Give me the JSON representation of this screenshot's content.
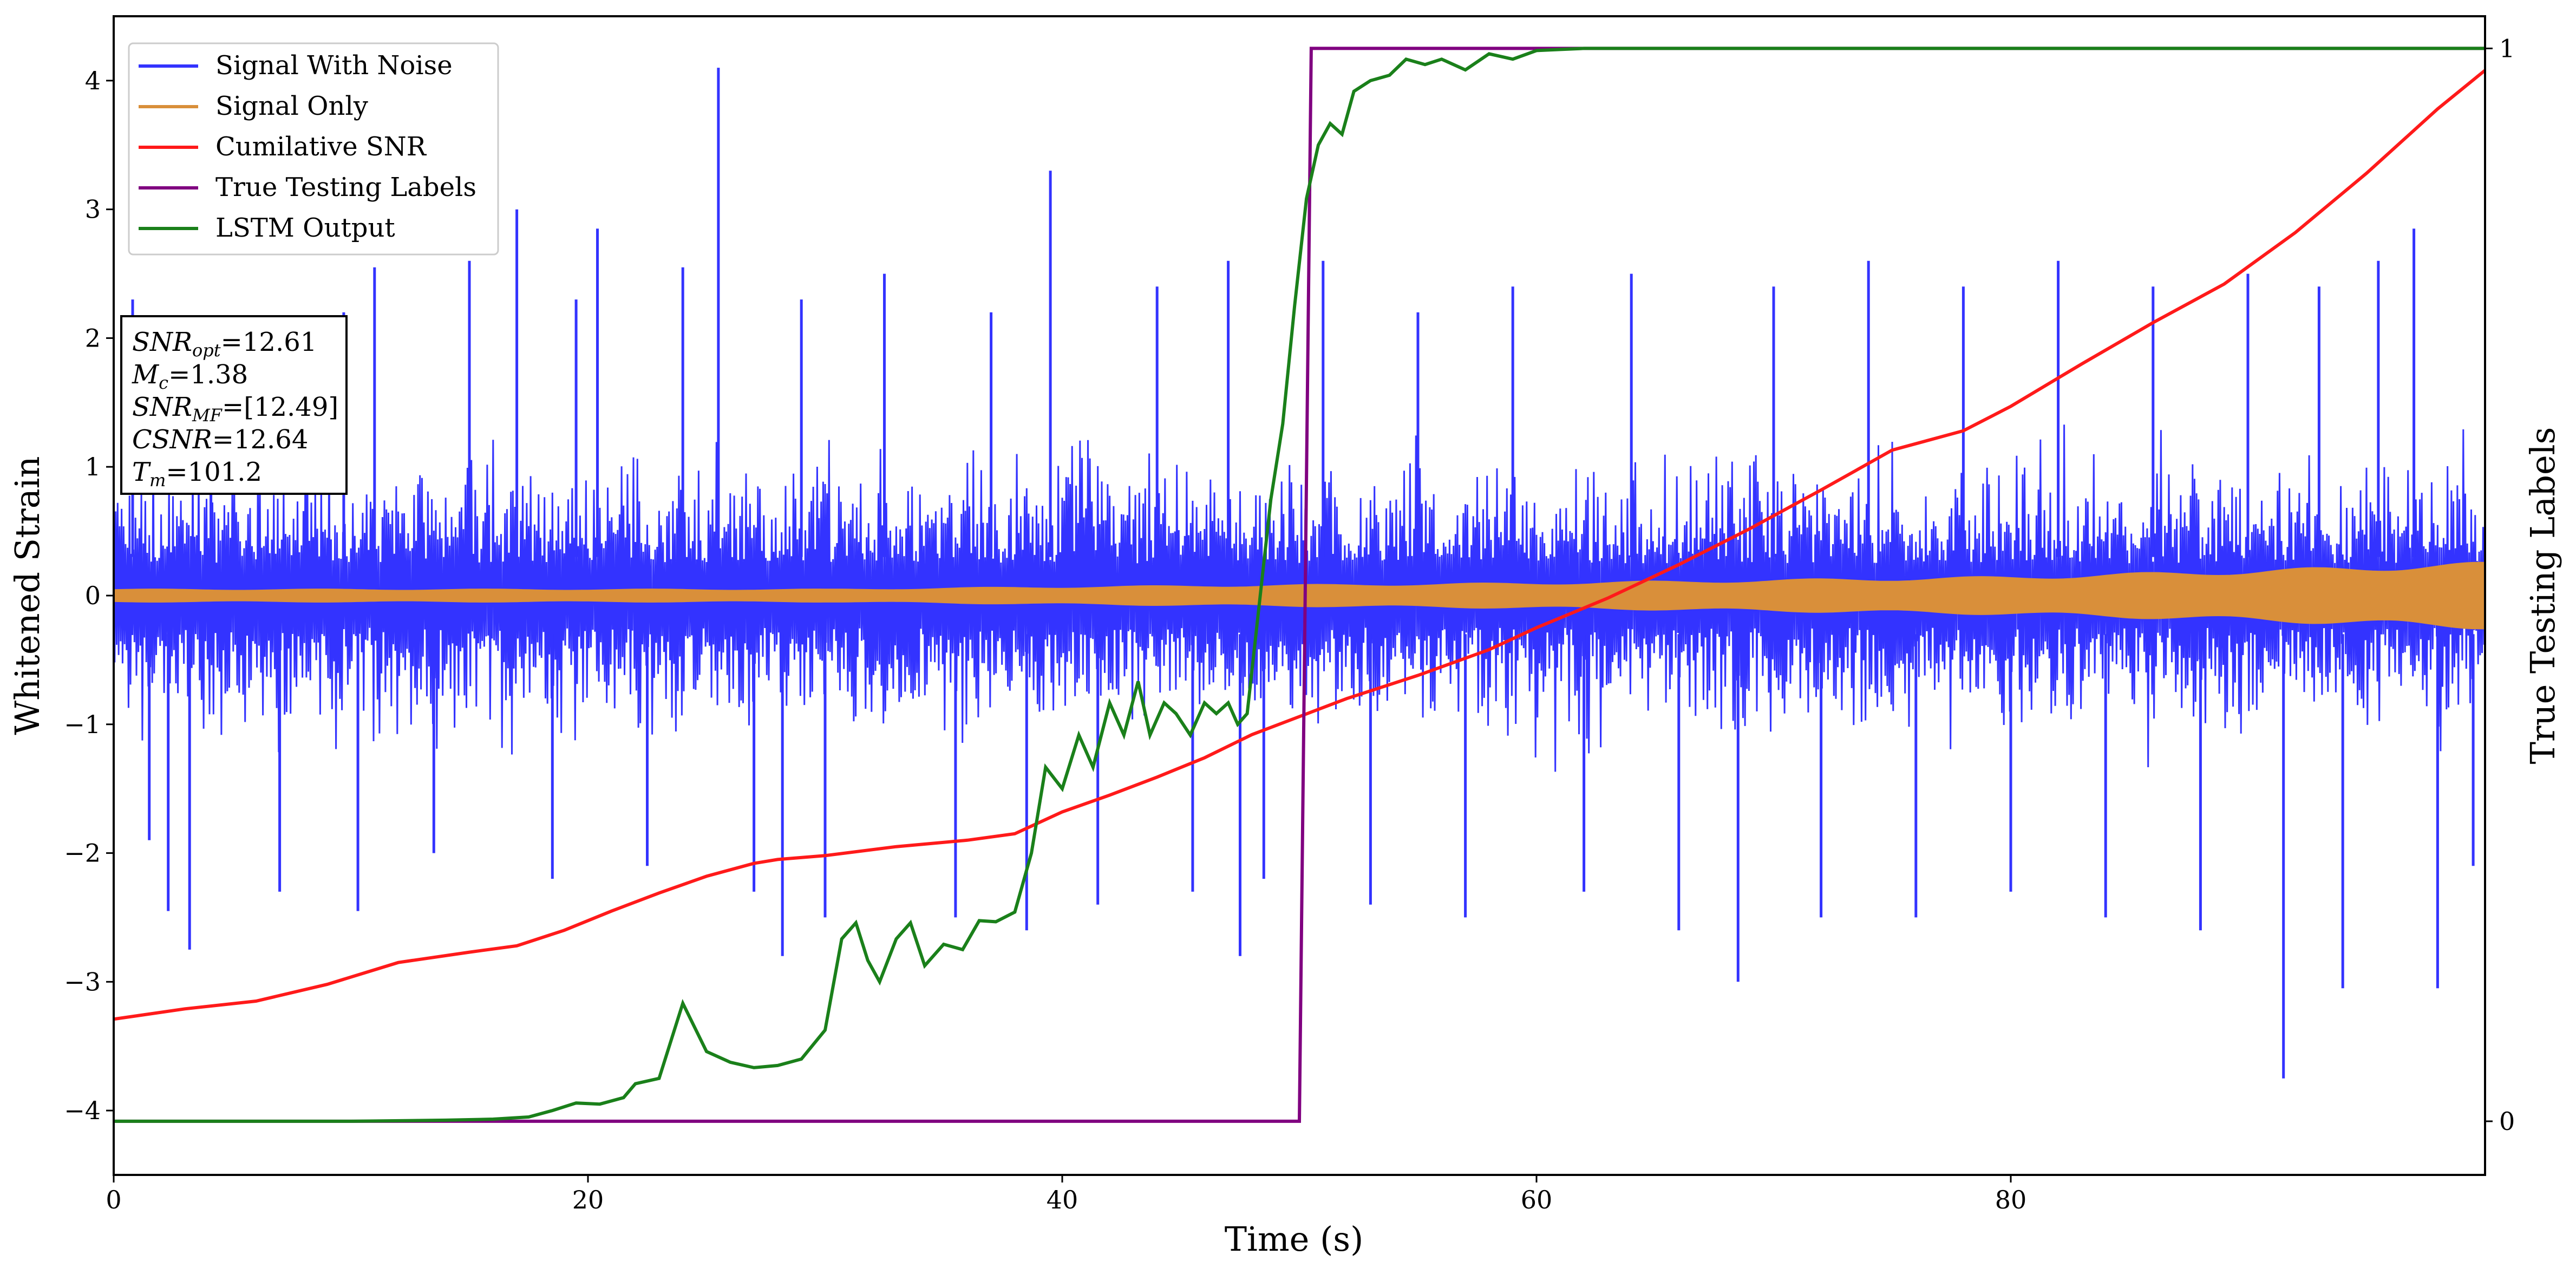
{
  "chart_data": {
    "type": "line",
    "xlabel": "Time (s)",
    "ylabel": "Whitened Strain",
    "ylabel_right": "True Testing Labels",
    "xlim": [
      0,
      100
    ],
    "ylim": [
      -4.5,
      4.5
    ],
    "ylim_right": [
      -0.05,
      1.03
    ],
    "x_ticks": [
      0,
      20,
      40,
      60,
      80
    ],
    "y_ticks": [
      -4,
      -3,
      -2,
      -1,
      0,
      1,
      2,
      3,
      4
    ],
    "y_ticks_right": [
      0,
      1
    ],
    "grid": false,
    "legend_position": "top-left",
    "colors": {
      "signal_with_noise": "#3333ff",
      "signal_only": "#d98f3a",
      "cumulative_snr": "#ff1a1a",
      "true_labels": "#800080",
      "lstm_output": "#1a801a"
    },
    "series": [
      {
        "name": "Signal With Noise",
        "axis": "left",
        "description": "noise band, approx -1.6..+1.6 with spikes",
        "envelope_upper_typical": 1.5,
        "envelope_lower_typical": -1.6,
        "spikes": [
          {
            "x": 0.8,
            "y": 2.3
          },
          {
            "x": 1.5,
            "y": -1.9
          },
          {
            "x": 2.3,
            "y": -2.45
          },
          {
            "x": 3.2,
            "y": -2.75
          },
          {
            "x": 4.1,
            "y": 2.05
          },
          {
            "x": 7.0,
            "y": -2.3
          },
          {
            "x": 9.7,
            "y": 2.2
          },
          {
            "x": 10.3,
            "y": -2.45
          },
          {
            "x": 11.0,
            "y": 2.55
          },
          {
            "x": 13.5,
            "y": -2.0
          },
          {
            "x": 15.0,
            "y": 2.6
          },
          {
            "x": 17.0,
            "y": 3.0
          },
          {
            "x": 18.5,
            "y": -2.2
          },
          {
            "x": 19.5,
            "y": 2.3
          },
          {
            "x": 20.4,
            "y": 2.85
          },
          {
            "x": 22.5,
            "y": -2.1
          },
          {
            "x": 24.0,
            "y": 2.55
          },
          {
            "x": 25.5,
            "y": 4.1
          },
          {
            "x": 27.0,
            "y": -2.3
          },
          {
            "x": 28.2,
            "y": -2.8
          },
          {
            "x": 29.0,
            "y": 2.3
          },
          {
            "x": 30.0,
            "y": -2.5
          },
          {
            "x": 32.5,
            "y": 2.5
          },
          {
            "x": 35.5,
            "y": -2.5
          },
          {
            "x": 37.0,
            "y": 2.2
          },
          {
            "x": 38.5,
            "y": -2.6
          },
          {
            "x": 39.5,
            "y": 3.3
          },
          {
            "x": 41.5,
            "y": -2.4
          },
          {
            "x": 44.0,
            "y": 2.4
          },
          {
            "x": 45.5,
            "y": -2.3
          },
          {
            "x": 47.0,
            "y": 2.6
          },
          {
            "x": 47.5,
            "y": -2.8
          },
          {
            "x": 48.5,
            "y": -2.2
          },
          {
            "x": 51.0,
            "y": 2.6
          },
          {
            "x": 53.0,
            "y": -2.4
          },
          {
            "x": 55.0,
            "y": 2.2
          },
          {
            "x": 57.0,
            "y": -2.5
          },
          {
            "x": 59.0,
            "y": 2.4
          },
          {
            "x": 62.0,
            "y": -2.3
          },
          {
            "x": 64.0,
            "y": 2.5
          },
          {
            "x": 66.0,
            "y": -2.6
          },
          {
            "x": 68.5,
            "y": -3.0
          },
          {
            "x": 70.0,
            "y": 2.4
          },
          {
            "x": 72.0,
            "y": -2.5
          },
          {
            "x": 74.0,
            "y": 2.6
          },
          {
            "x": 76.0,
            "y": -2.5
          },
          {
            "x": 78.0,
            "y": 2.4
          },
          {
            "x": 80.0,
            "y": -2.3
          },
          {
            "x": 82.0,
            "y": 2.6
          },
          {
            "x": 84.0,
            "y": -2.5
          },
          {
            "x": 86.0,
            "y": 2.4
          },
          {
            "x": 88.0,
            "y": -2.6
          },
          {
            "x": 90.0,
            "y": 2.5
          },
          {
            "x": 91.5,
            "y": -3.75
          },
          {
            "x": 93.0,
            "y": 2.4
          },
          {
            "x": 94.0,
            "y": -3.05
          },
          {
            "x": 95.5,
            "y": 2.6
          },
          {
            "x": 97.0,
            "y": 2.85
          },
          {
            "x": 98.0,
            "y": -3.05
          },
          {
            "x": 99.5,
            "y": -2.1
          }
        ]
      },
      {
        "name": "Signal Only",
        "axis": "left",
        "amplitude_by_x": [
          {
            "x": 0,
            "a": 0.05
          },
          {
            "x": 30,
            "a": 0.05
          },
          {
            "x": 40,
            "a": 0.07
          },
          {
            "x": 60,
            "a": 0.1
          },
          {
            "x": 80,
            "a": 0.15
          },
          {
            "x": 90,
            "a": 0.2
          },
          {
            "x": 100,
            "a": 0.26
          }
        ]
      },
      {
        "name": "Cumilative SNR",
        "axis": "left",
        "x": [
          0,
          3,
          6,
          9,
          12,
          15,
          17,
          19,
          21,
          23,
          25,
          27,
          28,
          30,
          33,
          36,
          38,
          40,
          42,
          44,
          46,
          48,
          50,
          52,
          55,
          58,
          60,
          63,
          66,
          69,
          72,
          75,
          78,
          80,
          83,
          86,
          89,
          92,
          95,
          98,
          100
        ],
        "y": [
          -3.29,
          -3.21,
          -3.15,
          -3.02,
          -2.85,
          -2.77,
          -2.72,
          -2.6,
          -2.45,
          -2.31,
          -2.18,
          -2.08,
          -2.05,
          -2.02,
          -1.95,
          -1.9,
          -1.85,
          -1.68,
          -1.55,
          -1.41,
          -1.26,
          -1.08,
          -0.94,
          -0.8,
          -0.62,
          -0.42,
          -0.25,
          -0.02,
          0.24,
          0.52,
          0.82,
          1.13,
          1.28,
          1.47,
          1.8,
          2.12,
          2.42,
          2.82,
          3.28,
          3.78,
          4.08
        ]
      },
      {
        "name": "True Testing Labels",
        "axis": "right",
        "x": [
          0,
          50.0,
          50.5,
          100
        ],
        "y": [
          0,
          0,
          1,
          1
        ]
      },
      {
        "name": "LSTM Output",
        "axis": "right",
        "x": [
          0,
          10,
          14,
          16,
          17.5,
          18.5,
          19.5,
          20.5,
          21.5,
          22,
          23,
          24,
          25,
          26,
          27,
          28,
          29,
          30,
          30.7,
          31.3,
          31.8,
          32.3,
          33,
          33.6,
          34.2,
          35,
          35.8,
          36.5,
          37.2,
          38,
          38.7,
          39.3,
          40,
          40.7,
          41.3,
          42,
          42.6,
          43.2,
          43.7,
          44.3,
          44.8,
          45.4,
          46,
          46.5,
          47,
          47.4,
          47.8,
          48.3,
          48.8,
          49.3,
          49.8,
          50.3,
          50.8,
          51.3,
          51.8,
          52.3,
          53,
          53.8,
          54.5,
          55.3,
          56,
          57,
          58,
          59,
          60,
          61,
          62,
          63,
          65,
          70,
          80,
          90,
          100
        ],
        "y": [
          0,
          0,
          0.001,
          0.002,
          0.004,
          0.01,
          0.017,
          0.016,
          0.022,
          0.035,
          0.04,
          0.11,
          0.065,
          0.055,
          0.05,
          0.052,
          0.058,
          0.085,
          0.17,
          0.185,
          0.15,
          0.13,
          0.17,
          0.185,
          0.145,
          0.165,
          0.16,
          0.187,
          0.186,
          0.195,
          0.25,
          0.33,
          0.31,
          0.36,
          0.33,
          0.39,
          0.36,
          0.41,
          0.36,
          0.39,
          0.38,
          0.36,
          0.39,
          0.38,
          0.39,
          0.37,
          0.38,
          0.48,
          0.58,
          0.65,
          0.76,
          0.86,
          0.91,
          0.93,
          0.92,
          0.96,
          0.97,
          0.975,
          0.99,
          0.985,
          0.99,
          0.98,
          0.995,
          0.99,
          0.998,
          0.999,
          1.0,
          1.0,
          1.0,
          1.0,
          1.0,
          1.0,
          1.0
        ]
      }
    ]
  },
  "info_box": {
    "snr_opt_main": "SNR",
    "snr_opt_sub": "opt",
    "snr_opt_value": "=12.61",
    "mc_main": "M",
    "mc_sub": "c",
    "mc_value": "=1.38",
    "snr_mf_main": "SNR",
    "snr_mf_sub": "MF",
    "snr_mf_value": "=[12.49]",
    "csnr_main": "CSNR",
    "csnr_value": "=12.64",
    "tm_main": "T",
    "tm_sub": "m",
    "tm_value": "=101.2"
  }
}
